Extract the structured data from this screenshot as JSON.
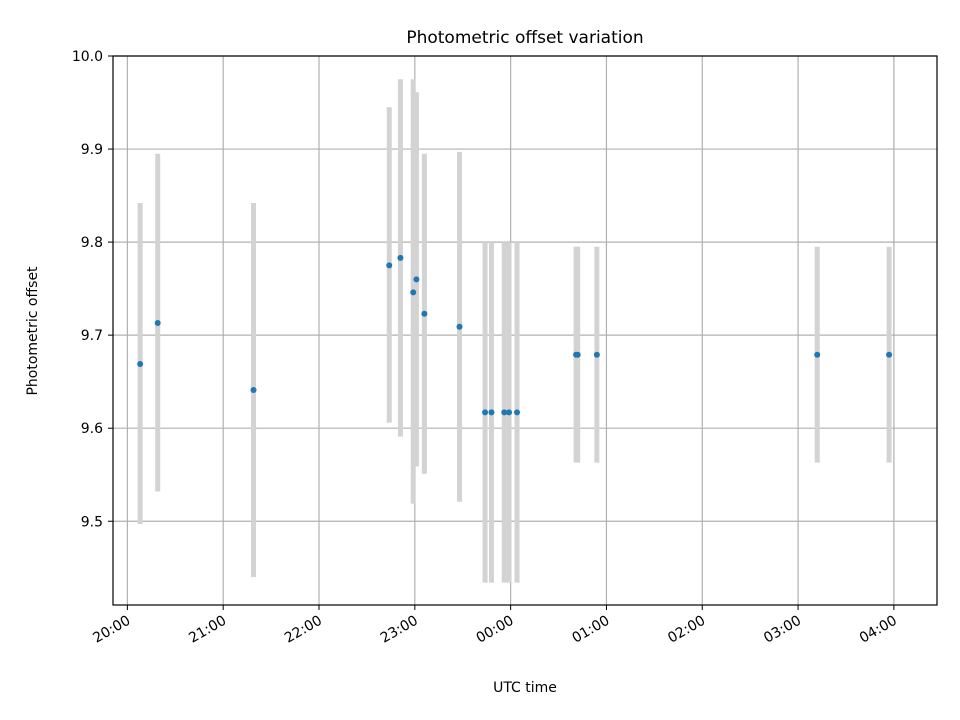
{
  "chart_data": {
    "type": "scatter",
    "title": "Photometric offset variation",
    "xlabel": "UTC time",
    "ylabel": "Photometric offset",
    "x_tick_labels": [
      "20:00",
      "21:00",
      "22:00",
      "23:00",
      "00:00",
      "01:00",
      "02:00",
      "03:00",
      "04:00"
    ],
    "y_tick_labels": [
      "9.5",
      "9.6",
      "9.7",
      "9.8",
      "9.9",
      "10.0"
    ],
    "y_ticks": [
      9.5,
      9.6,
      9.7,
      9.8,
      9.9,
      10.0
    ],
    "xlim": [
      "19:51",
      "04:27"
    ],
    "ylim": [
      9.41,
      10.0
    ],
    "grid": true,
    "legend": false,
    "colors": {
      "marker": "#1f77b4",
      "errorbar": "#d3d3d3",
      "grid": "#b0b0b0"
    },
    "points": [
      {
        "x": "20:08",
        "y": 9.669,
        "ylow": 9.497,
        "yhigh": 9.842
      },
      {
        "x": "20:19",
        "y": 9.713,
        "ylow": 9.532,
        "yhigh": 9.895
      },
      {
        "x": "21:19",
        "y": 9.641,
        "ylow": 9.44,
        "yhigh": 9.842
      },
      {
        "x": "22:44",
        "y": 9.775,
        "ylow": 9.606,
        "yhigh": 9.945
      },
      {
        "x": "22:51",
        "y": 9.783,
        "ylow": 9.591,
        "yhigh": 9.975
      },
      {
        "x": "22:59",
        "y": 9.746,
        "ylow": 9.519,
        "yhigh": 9.975
      },
      {
        "x": "23:01",
        "y": 9.76,
        "ylow": 9.559,
        "yhigh": 9.961
      },
      {
        "x": "23:06",
        "y": 9.723,
        "ylow": 9.551,
        "yhigh": 9.895
      },
      {
        "x": "23:28",
        "y": 9.709,
        "ylow": 9.521,
        "yhigh": 9.897
      },
      {
        "x": "23:44",
        "y": 9.617,
        "ylow": 9.434,
        "yhigh": 9.8
      },
      {
        "x": "23:48",
        "y": 9.617,
        "ylow": 9.434,
        "yhigh": 9.8
      },
      {
        "x": "23:56",
        "y": 9.617,
        "ylow": 9.434,
        "yhigh": 9.8
      },
      {
        "x": "23:59",
        "y": 9.617,
        "ylow": 9.434,
        "yhigh": 9.8
      },
      {
        "x": "00:04",
        "y": 9.617,
        "ylow": 9.434,
        "yhigh": 9.8
      },
      {
        "x": "00:41",
        "y": 9.679,
        "ylow": 9.563,
        "yhigh": 9.795
      },
      {
        "x": "00:42",
        "y": 9.679,
        "ylow": 9.563,
        "yhigh": 9.795
      },
      {
        "x": "00:54",
        "y": 9.679,
        "ylow": 9.563,
        "yhigh": 9.795
      },
      {
        "x": "03:12",
        "y": 9.679,
        "ylow": 9.563,
        "yhigh": 9.795
      },
      {
        "x": "03:57",
        "y": 9.679,
        "ylow": 9.563,
        "yhigh": 9.795
      }
    ]
  }
}
